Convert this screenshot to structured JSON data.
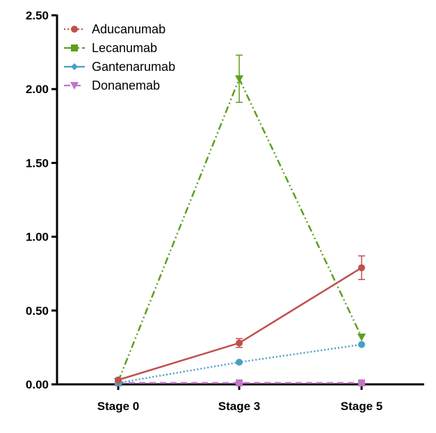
{
  "chart_data": {
    "type": "line",
    "title": "",
    "xlabel": "",
    "ylabel": "",
    "categories": [
      "Stage 0",
      "Stage 3",
      "Stage 5"
    ],
    "ylim": [
      0,
      2.5
    ],
    "yticks": [
      "0.00",
      "0.50",
      "1.00",
      "1.50",
      "2.00",
      "2.50"
    ],
    "yticks_values": [
      0,
      0.5,
      1.0,
      1.5,
      2.0,
      2.5
    ],
    "legend_position": "top-left",
    "grid": false,
    "series": [
      {
        "name": "Aducanumab",
        "legend_style": "dotted",
        "legend_marker": "circle",
        "color": "#c0504d",
        "line_style": "solid",
        "marker": "circle",
        "values": [
          0.03,
          0.28,
          0.79
        ],
        "errors": [
          0,
          0.03,
          0.08
        ]
      },
      {
        "name": "Lecanumab",
        "legend_style": "dashdot",
        "legend_marker": "square",
        "color": "#5c9e1e",
        "line_style": "dashdot",
        "marker": "triangle-down",
        "values": [
          0.02,
          2.07,
          0.32
        ],
        "errors": [
          0,
          0.16,
          0
        ]
      },
      {
        "name": "Gantenarumab",
        "legend_style": "solid",
        "legend_marker": "diamond",
        "color": "#4a9fc4",
        "line_style": "dotted",
        "marker": "circle",
        "values": [
          0.01,
          0.15,
          0.27
        ],
        "errors": [
          0,
          0,
          0
        ]
      },
      {
        "name": "Donanemab",
        "legend_style": "dashed",
        "legend_marker": "triangle-down",
        "color": "#c276c6",
        "line_style": "dashed",
        "marker": "square",
        "values": [
          0.01,
          0.01,
          0.01
        ],
        "errors": [
          0,
          0,
          0
        ]
      }
    ]
  }
}
